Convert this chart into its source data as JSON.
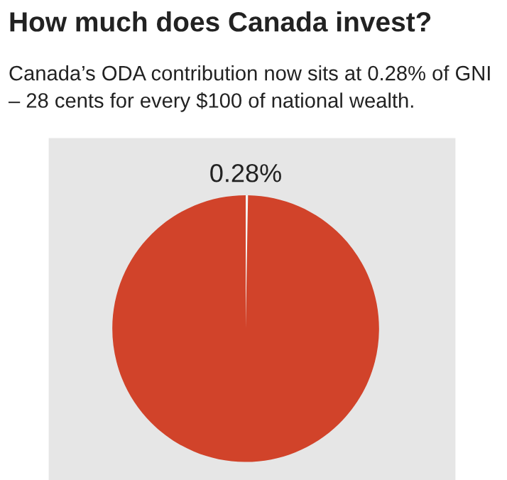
{
  "chart_data": {
    "type": "pie",
    "title": "How much does Canada invest?",
    "subtitle": "Canada’s ODA contribution now sits at 0.28% of GNI – 28 cents for every $100 of national wealth.",
    "categories": [
      null,
      null
    ],
    "values": [
      0.28,
      99.72
    ],
    "colors": [
      "#f4f4f4",
      "#d1432a"
    ],
    "value_labels": [
      "0.28%",
      null
    ],
    "legend": false
  }
}
